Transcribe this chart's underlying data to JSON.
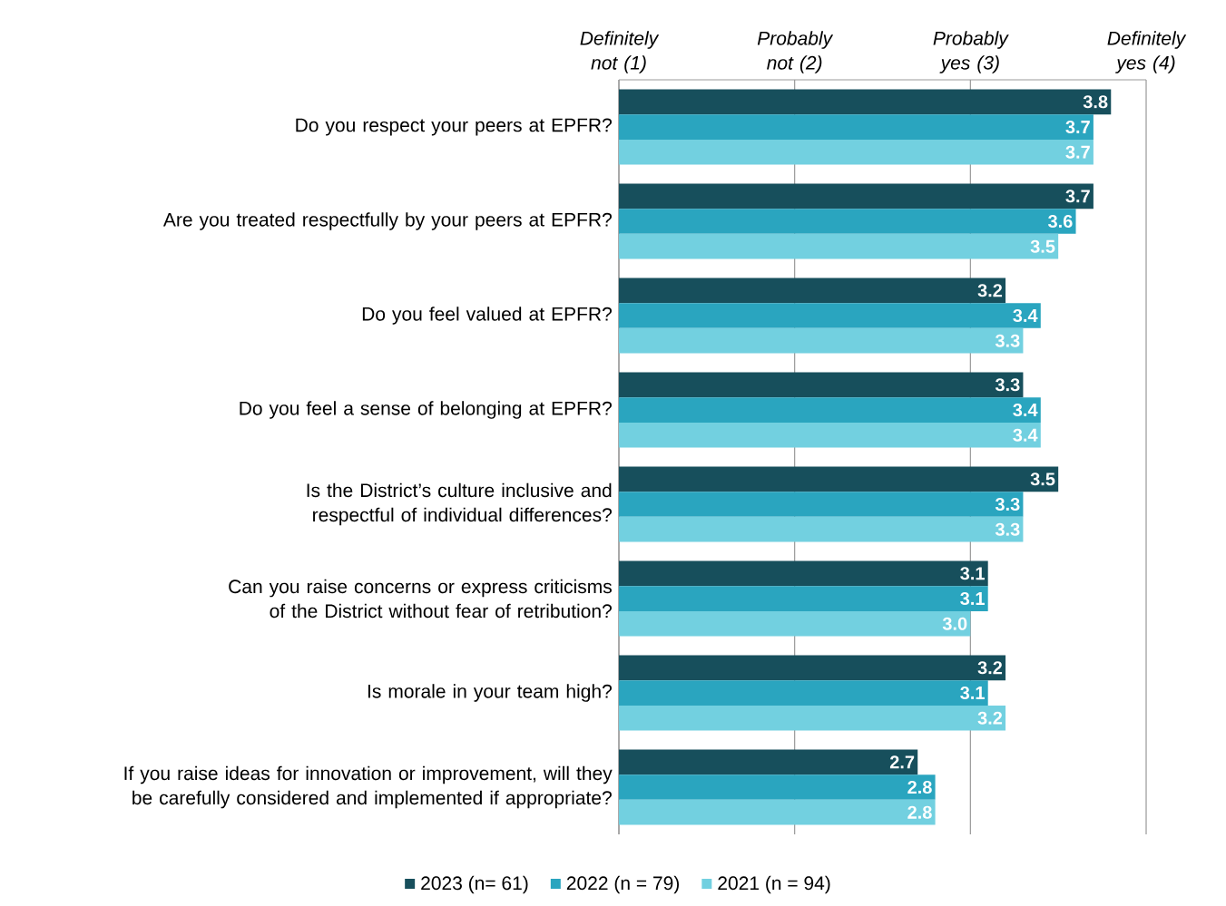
{
  "chart_data": {
    "type": "bar",
    "orientation": "horizontal",
    "categories": [
      "Do you respect your peers at EPFR?",
      "Are you treated respectfully by your peers at EPFR?",
      "Do you feel valued at EPFR?",
      "Do you feel a sense of belonging at EPFR?",
      "Is the District’s culture inclusive and respectful of individual differences?",
      "Can you raise concerns or express criticisms of the District without fear of retribution?",
      "Is morale in your team high?",
      "If you raise ideas for innovation or improvement, will they be carefully considered and implemented if appropriate?"
    ],
    "series": [
      {
        "name": "2023 (n= 61)",
        "color": "#174f5c",
        "values": [
          3.8,
          3.7,
          3.2,
          3.3,
          3.5,
          3.1,
          3.2,
          2.7
        ],
        "value_labels": [
          "3.8",
          "3.7",
          "3.2",
          "3.3",
          "3.5",
          "3.1",
          "3.2",
          "2.7"
        ]
      },
      {
        "name": "2022 (n = 79)",
        "color": "#2aa5bf",
        "values": [
          3.7,
          3.6,
          3.4,
          3.4,
          3.3,
          3.1,
          3.1,
          2.8
        ],
        "value_labels": [
          "3.7",
          "3.6",
          "3.4",
          "3.4",
          "3.3",
          "3.1",
          "3.1",
          "2.8"
        ]
      },
      {
        "name": "2021 (n = 94)",
        "color": "#72d0e0",
        "values": [
          3.7,
          3.5,
          3.3,
          3.4,
          3.3,
          3.0,
          3.2,
          2.8
        ],
        "value_labels": [
          "3.7",
          "3.5",
          "3.3",
          "3.4",
          "3.3",
          "3.0",
          "3.2",
          "2.8"
        ]
      }
    ],
    "xlim": [
      1,
      4
    ],
    "xticks": [
      {
        "value": 1,
        "label": "Definitely not (1)"
      },
      {
        "value": 2,
        "label": "Probably not (2)"
      },
      {
        "value": 3,
        "label": "Probably yes (3)"
      },
      {
        "value": 4,
        "label": "Definitely yes (4)"
      }
    ],
    "grid": "x",
    "legend": "bottom"
  }
}
